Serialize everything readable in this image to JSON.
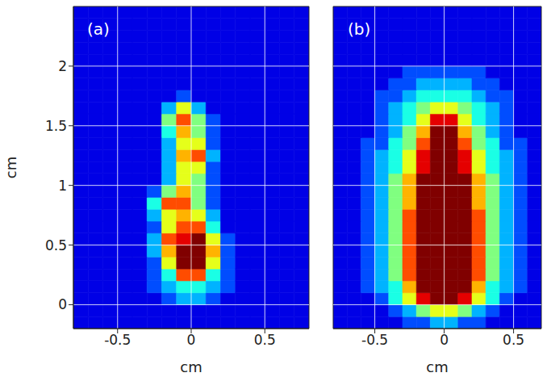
{
  "chart_data": [
    {
      "type": "heatmap",
      "title": "(a)",
      "xlabel": "cm",
      "ylabel": "cm",
      "xlim": [
        -0.8,
        0.8
      ],
      "ylim": [
        -0.2,
        2.5
      ],
      "xticks": [
        -0.5,
        0,
        0.5
      ],
      "yticks": [
        0,
        0.5,
        1,
        1.5,
        2
      ],
      "grid": true,
      "zlim": [
        0,
        10
      ],
      "x_edges": [
        -0.8,
        -0.7,
        -0.6,
        -0.5,
        -0.4,
        -0.3,
        -0.2,
        -0.1,
        0,
        0.1,
        0.2,
        0.3,
        0.4,
        0.5,
        0.6,
        0.7,
        0.8
      ],
      "y_edges": [
        -0.2,
        -0.1,
        0,
        0.1,
        0.2,
        0.3,
        0.4,
        0.5,
        0.6,
        0.7,
        0.8,
        0.9,
        1,
        1.1,
        1.2,
        1.3,
        1.4,
        1.5,
        1.6,
        1.7,
        1.8,
        1.9,
        2,
        2.1,
        2.2,
        2.3,
        2.4,
        2.5
      ],
      "z": [
        [
          1,
          1,
          1,
          1,
          1,
          1,
          1,
          1,
          1,
          1,
          1,
          1,
          1,
          1,
          1,
          1
        ],
        [
          1,
          1,
          1,
          1,
          1,
          1,
          1,
          1,
          1,
          1,
          1,
          1,
          1,
          1,
          1,
          1
        ],
        [
          1,
          1,
          1,
          1,
          1,
          1,
          2,
          3,
          3,
          2,
          1,
          1,
          1,
          1,
          1,
          1
        ],
        [
          1,
          1,
          1,
          1,
          1,
          2,
          3,
          4,
          4,
          3,
          2,
          1,
          1,
          1,
          1,
          1
        ],
        [
          1,
          1,
          1,
          1,
          1,
          2,
          4,
          8,
          8,
          4,
          2,
          1,
          1,
          1,
          1,
          1
        ],
        [
          1,
          1,
          1,
          1,
          1,
          2,
          6,
          10,
          10,
          6,
          2,
          1,
          1,
          1,
          1,
          1
        ],
        [
          1,
          1,
          1,
          1,
          1,
          3,
          7,
          10,
          10,
          7,
          2,
          1,
          1,
          1,
          1,
          1
        ],
        [
          1,
          1,
          1,
          1,
          1,
          3,
          8,
          9,
          10,
          6,
          2,
          1,
          1,
          1,
          1,
          1
        ],
        [
          1,
          1,
          1,
          1,
          1,
          2,
          6,
          8,
          8,
          4,
          1,
          1,
          1,
          1,
          1,
          1
        ],
        [
          1,
          1,
          1,
          1,
          1,
          3,
          6,
          7,
          6,
          3,
          1,
          1,
          1,
          1,
          1,
          1
        ],
        [
          1,
          1,
          1,
          1,
          1,
          4,
          8,
          8,
          5,
          2,
          1,
          1,
          1,
          1,
          1,
          1
        ],
        [
          1,
          1,
          1,
          1,
          1,
          2,
          5,
          7,
          5,
          2,
          1,
          1,
          1,
          1,
          1,
          1
        ],
        [
          1,
          1,
          1,
          1,
          1,
          1,
          3,
          6,
          5,
          2,
          1,
          1,
          1,
          1,
          1,
          1
        ],
        [
          1,
          1,
          1,
          1,
          1,
          1,
          3,
          6,
          6,
          2,
          1,
          1,
          1,
          1,
          1,
          1
        ],
        [
          1,
          1,
          1,
          1,
          1,
          1,
          3,
          7,
          8,
          3,
          1,
          1,
          1,
          1,
          1,
          1
        ],
        [
          1,
          1,
          1,
          1,
          1,
          1,
          3,
          6,
          6,
          2,
          1,
          1,
          1,
          1,
          1,
          1
        ],
        [
          1,
          1,
          1,
          1,
          1,
          1,
          4,
          7,
          5,
          2,
          1,
          1,
          1,
          1,
          1,
          1
        ],
        [
          1,
          1,
          1,
          1,
          1,
          1,
          5,
          8,
          5,
          2,
          1,
          1,
          1,
          1,
          1,
          1
        ],
        [
          1,
          1,
          1,
          1,
          1,
          1,
          3,
          6,
          3,
          1,
          1,
          1,
          1,
          1,
          1,
          1
        ],
        [
          1,
          1,
          1,
          1,
          1,
          1,
          1,
          2,
          1,
          1,
          1,
          1,
          1,
          1,
          1,
          1
        ],
        [
          1,
          1,
          1,
          1,
          1,
          1,
          1,
          1,
          1,
          1,
          1,
          1,
          1,
          1,
          1,
          1
        ],
        [
          1,
          1,
          1,
          1,
          1,
          1,
          1,
          1,
          1,
          1,
          1,
          1,
          1,
          1,
          1,
          1
        ],
        [
          1,
          1,
          1,
          1,
          1,
          1,
          1,
          1,
          1,
          1,
          1,
          1,
          1,
          1,
          1,
          1
        ],
        [
          1,
          1,
          1,
          1,
          1,
          1,
          1,
          1,
          1,
          1,
          1,
          1,
          1,
          1,
          1,
          1
        ],
        [
          1,
          1,
          1,
          1,
          1,
          1,
          1,
          1,
          1,
          1,
          1,
          1,
          1,
          1,
          1,
          1
        ],
        [
          1,
          1,
          1,
          1,
          1,
          1,
          1,
          1,
          1,
          1,
          1,
          1,
          1,
          1,
          1,
          1
        ],
        [
          1,
          1,
          1,
          1,
          1,
          1,
          1,
          1,
          1,
          1,
          1,
          1,
          1,
          1,
          1,
          1
        ]
      ]
    },
    {
      "type": "heatmap",
      "title": "(b)",
      "xlabel": "cm",
      "xlim": [
        -0.8,
        0.7
      ],
      "ylim": [
        -0.2,
        2.5
      ],
      "xticks": [
        -0.5,
        0,
        0.5
      ],
      "yticks": [
        0,
        0.5,
        1,
        1.5,
        2
      ],
      "grid": true,
      "tick_labels": "x",
      "zlim": [
        0,
        10
      ],
      "x_edges": [
        -0.8,
        -0.7,
        -0.6,
        -0.5,
        -0.4,
        -0.3,
        -0.2,
        -0.1,
        0,
        0.1,
        0.2,
        0.3,
        0.4,
        0.5,
        0.6,
        0.7
      ],
      "y_edges": [
        -0.2,
        -0.1,
        0,
        0.1,
        0.2,
        0.3,
        0.4,
        0.5,
        0.6,
        0.7,
        0.8,
        0.9,
        1,
        1.1,
        1.2,
        1.3,
        1.4,
        1.5,
        1.6,
        1.7,
        1.8,
        1.9,
        2,
        2.1,
        2.2,
        2.3,
        2.4,
        2.5
      ],
      "z": [
        [
          1,
          1,
          1,
          1,
          1,
          2,
          2,
          3,
          3,
          2,
          2,
          1,
          1,
          1,
          1
        ],
        [
          1,
          1,
          1,
          1,
          2,
          3,
          5,
          6,
          6,
          5,
          3,
          2,
          1,
          1,
          1
        ],
        [
          1,
          1,
          1,
          2,
          4,
          6,
          9,
          10,
          10,
          9,
          6,
          4,
          2,
          1,
          1
        ],
        [
          1,
          1,
          2,
          3,
          4,
          7,
          10,
          10,
          10,
          10,
          7,
          4,
          3,
          2,
          1
        ],
        [
          1,
          1,
          2,
          3,
          5,
          8,
          10,
          10,
          10,
          10,
          8,
          5,
          3,
          2,
          1
        ],
        [
          1,
          1,
          2,
          3,
          5,
          8,
          10,
          10,
          10,
          10,
          8,
          5,
          3,
          2,
          1
        ],
        [
          1,
          1,
          2,
          3,
          5,
          8,
          10,
          10,
          10,
          10,
          8,
          5,
          3,
          2,
          1
        ],
        [
          1,
          1,
          2,
          3,
          5,
          8,
          10,
          10,
          10,
          10,
          8,
          5,
          3,
          2,
          1
        ],
        [
          1,
          1,
          2,
          3,
          5,
          8,
          10,
          10,
          10,
          10,
          8,
          5,
          3,
          2,
          1
        ],
        [
          1,
          1,
          2,
          3,
          5,
          8,
          10,
          10,
          10,
          10,
          8,
          5,
          3,
          2,
          1
        ],
        [
          1,
          1,
          2,
          3,
          5,
          7,
          10,
          10,
          10,
          10,
          7,
          5,
          3,
          2,
          1
        ],
        [
          1,
          1,
          2,
          3,
          5,
          7,
          10,
          10,
          10,
          10,
          7,
          5,
          3,
          2,
          1
        ],
        [
          1,
          1,
          2,
          3,
          5,
          7,
          10,
          10,
          10,
          10,
          7,
          5,
          3,
          2,
          1
        ],
        [
          1,
          1,
          2,
          3,
          4,
          6,
          9,
          10,
          10,
          9,
          6,
          4,
          3,
          2,
          1
        ],
        [
          1,
          1,
          2,
          3,
          4,
          6,
          9,
          10,
          10,
          9,
          6,
          4,
          3,
          2,
          1
        ],
        [
          1,
          1,
          2,
          2,
          4,
          5,
          8,
          10,
          10,
          8,
          5,
          4,
          2,
          2,
          1
        ],
        [
          1,
          1,
          1,
          2,
          3,
          5,
          7,
          10,
          10,
          7,
          5,
          3,
          2,
          1,
          1
        ],
        [
          1,
          1,
          1,
          2,
          3,
          4,
          6,
          9,
          9,
          6,
          4,
          3,
          2,
          1,
          1
        ],
        [
          1,
          1,
          1,
          2,
          3,
          4,
          5,
          6,
          6,
          5,
          4,
          3,
          2,
          1,
          1
        ],
        [
          1,
          1,
          1,
          2,
          2,
          3,
          4,
          4,
          4,
          4,
          3,
          2,
          2,
          1,
          1
        ],
        [
          1,
          1,
          1,
          1,
          2,
          2,
          3,
          3,
          3,
          3,
          2,
          2,
          1,
          1,
          1
        ],
        [
          1,
          1,
          1,
          1,
          1,
          2,
          2,
          2,
          2,
          2,
          2,
          1,
          1,
          1,
          1
        ],
        [
          1,
          1,
          1,
          1,
          1,
          1,
          1,
          1,
          1,
          1,
          1,
          1,
          1,
          1,
          1
        ],
        [
          1,
          1,
          1,
          1,
          1,
          1,
          1,
          1,
          1,
          1,
          1,
          1,
          1,
          1,
          1
        ],
        [
          1,
          1,
          1,
          1,
          1,
          1,
          1,
          1,
          1,
          1,
          1,
          1,
          1,
          1,
          1
        ],
        [
          1,
          1,
          1,
          1,
          1,
          1,
          1,
          1,
          1,
          1,
          1,
          1,
          1,
          1,
          1
        ],
        [
          1,
          1,
          1,
          1,
          1,
          1,
          1,
          1,
          1,
          1,
          1,
          1,
          1,
          1,
          1
        ]
      ]
    }
  ]
}
